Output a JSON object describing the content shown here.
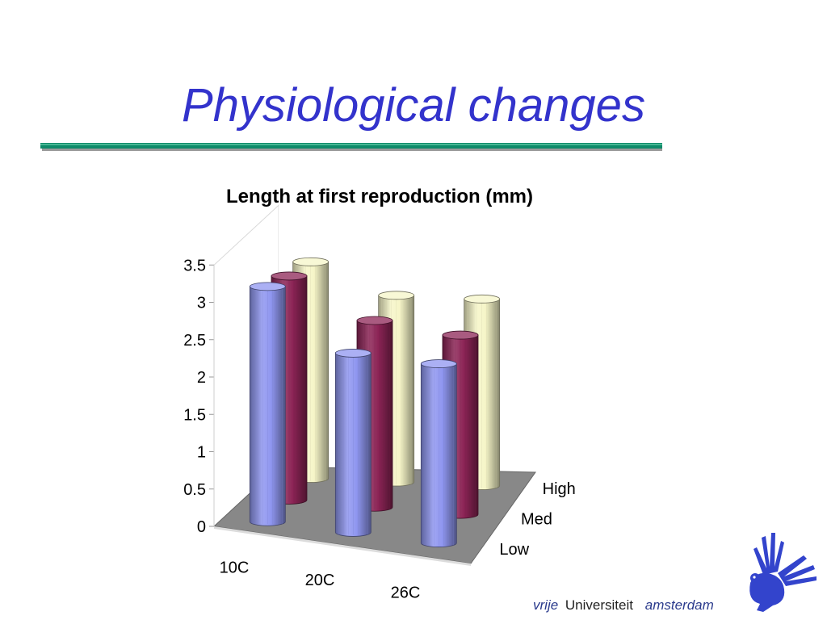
{
  "slide": {
    "title": "Physiological changes"
  },
  "colors": {
    "title": "#3333cc",
    "rule": "#0f8a6a",
    "series_low": "#8f96f0",
    "series_med": "#8c2456",
    "series_high": "#f6f5c8",
    "floor": "#888888"
  },
  "chart_data": {
    "type": "bar",
    "subtype": "3d-cylinder",
    "title": "Length at first reproduction (mm)",
    "categories": [
      "10C",
      "20C",
      "26C"
    ],
    "series": [
      {
        "name": "Low",
        "values": [
          3.15,
          2.4,
          2.4
        ]
      },
      {
        "name": "Med",
        "values": [
          3.0,
          2.5,
          2.4
        ]
      },
      {
        "name": "High",
        "values": [
          2.9,
          2.5,
          2.5
        ]
      }
    ],
    "ylim": [
      0,
      3.5
    ],
    "yticks": [
      "0",
      "0.5",
      "1",
      "1.5",
      "2",
      "2.5",
      "3",
      "3.5"
    ],
    "grid": false,
    "legend": "depth-axis"
  },
  "footer": {
    "vrije": "vrije",
    "universiteit": "Universiteit",
    "amsterdam": "amsterdam"
  },
  "logo": {
    "icon": "griffin-logo"
  }
}
